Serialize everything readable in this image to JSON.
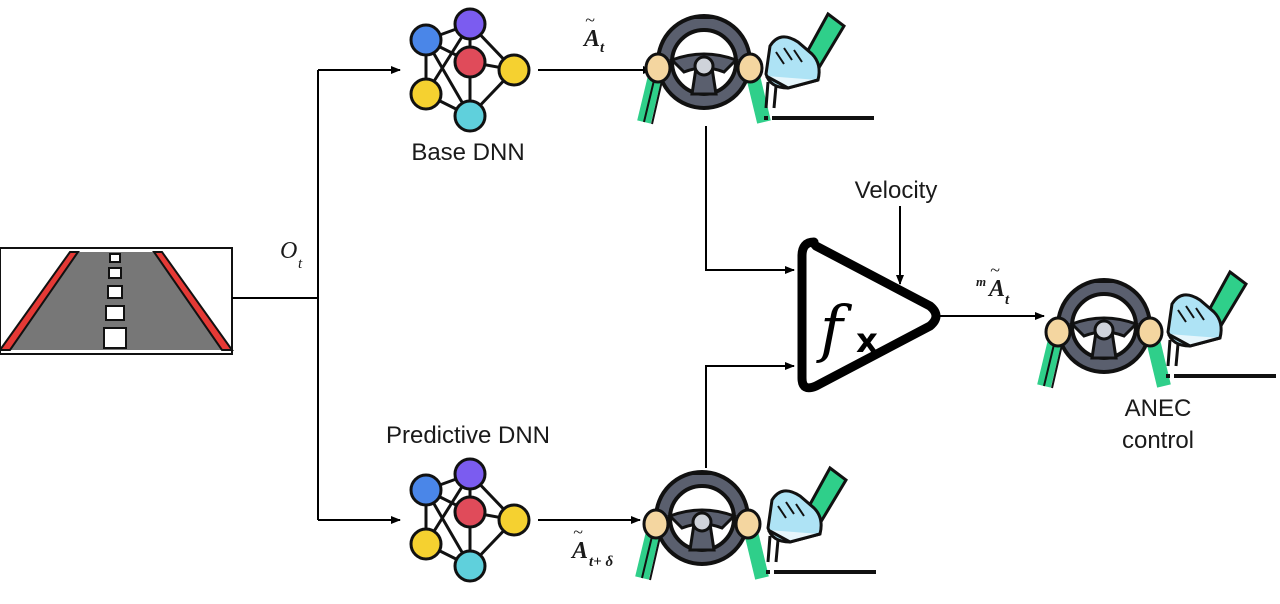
{
  "labels": {
    "base_dnn": "Base DNN",
    "predictive_dnn": "Predictive DNN",
    "velocity": "Velocity",
    "anec_line1": "ANEC",
    "anec_line2": "control",
    "observation": "O",
    "observation_sub": "t",
    "base_output": "A",
    "base_output_sub": "t",
    "pred_output": "A",
    "pred_output_sub": "t+ δ",
    "merged_output_pre": "m",
    "merged_output": "A",
    "merged_output_sub": "t",
    "function_symbol": "f",
    "function_x": "x"
  },
  "icons": [
    "road-icon",
    "neural-network-icon",
    "steering-wheel-icon",
    "pedal-icon",
    "function-block-icon"
  ],
  "colors": {
    "node_blue": "#4a86e8",
    "node_purple": "#7b5cf0",
    "node_red": "#e04b5a",
    "node_yellow": "#f5d130",
    "node_cyan": "#5fd0dc",
    "sleeve_green": "#2fcf8a",
    "hand_skin": "#f4d6a0",
    "wheel_grey": "#5a5f6e",
    "shoe_blue": "#aee3f5",
    "road_grey": "#777777",
    "road_red": "#e53935"
  }
}
